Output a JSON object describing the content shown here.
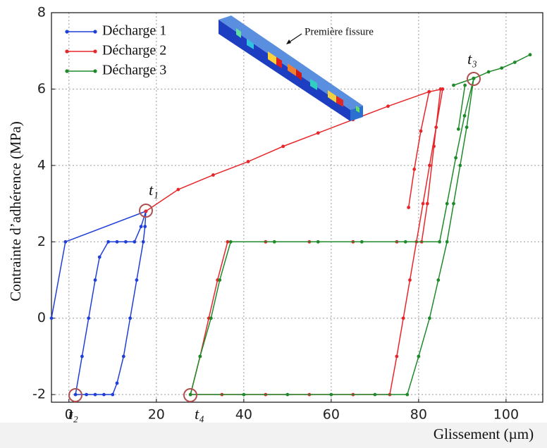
{
  "chart_data": {
    "type": "line",
    "xlabel": "Glissement (µm)",
    "ylabel": "Contrainte d’adhérence (MPa)",
    "xlim": [
      -4,
      108.4
    ],
    "ylim": [
      -2.2,
      8
    ],
    "xticks": [
      0,
      20,
      40,
      60,
      80,
      100
    ],
    "yticks": [
      -2,
      0,
      2,
      4,
      6,
      8
    ],
    "grid": true,
    "legend": "upper left",
    "series": [
      {
        "name": "Décharge 1",
        "color": "#1f3fd8",
        "x": [
          -4,
          -0.8,
          17.6,
          17.4,
          17,
          15.5,
          14,
          12.5,
          11,
          10,
          8,
          6,
          4,
          1.5,
          3,
          4.5,
          6,
          7,
          9,
          11,
          13,
          15,
          16.5,
          17.6
        ],
        "values": [
          0,
          2,
          2.8,
          2.4,
          2,
          1,
          0,
          -1,
          -1.7,
          -2,
          -2,
          -2,
          -2,
          -2,
          -1,
          0,
          1,
          1.6,
          2,
          2,
          2,
          2,
          2.4,
          2.8
        ]
      },
      {
        "name": "Décharge 2",
        "color": "#e8262a",
        "x": [
          17.6,
          25,
          33,
          41,
          49,
          57,
          65,
          73,
          82.4,
          85.5,
          84,
          82.5,
          81,
          79.5,
          78,
          76.5,
          75,
          73.4,
          65,
          55,
          45,
          35,
          27.8,
          30,
          32,
          34,
          36.3,
          45,
          55,
          65,
          75,
          80.7,
          82,
          83.5,
          85,
          null,
          77.7,
          79,
          80.5,
          82.4
        ],
        "values": [
          2.8,
          3.37,
          3.75,
          4.1,
          4.5,
          4.85,
          5.2,
          5.55,
          5.93,
          6,
          5,
          4,
          3,
          2,
          1,
          0,
          -1,
          -2,
          -2,
          -2,
          -2,
          -2,
          -2,
          -1,
          0,
          1,
          2,
          2,
          2,
          2,
          2,
          2,
          3,
          4.5,
          6,
          null,
          2.9,
          3.9,
          4.9,
          5.93
        ]
      },
      {
        "name": "Décharge 3",
        "color": "#1f8a2a",
        "x": [
          88,
          92.6,
          96,
          99,
          102,
          105.5,
          null,
          92.6,
          91,
          89.5,
          88,
          86.5,
          84.5,
          82.5,
          80,
          77.4,
          70,
          60,
          50,
          40,
          27.8,
          30,
          32.5,
          34.5,
          37,
          47,
          57,
          67,
          77,
          84.8,
          86.5,
          88.5,
          90.5,
          92.6,
          null,
          89.1,
          90.6
        ],
        "values": [
          6.1,
          6.28,
          6.45,
          6.55,
          6.7,
          6.9,
          null,
          6.28,
          5,
          4,
          3,
          2,
          1,
          0,
          -1,
          -2,
          -2,
          -2,
          -2,
          -2,
          -2,
          -1,
          0,
          1,
          2,
          2,
          2,
          2,
          2,
          2,
          3,
          4.2,
          5.3,
          6.28,
          null,
          4.95,
          6.1
        ]
      }
    ],
    "annotations": [
      "t₁",
      "t₂",
      "t₃",
      "t₄",
      "Première fissure"
    ]
  }
}
